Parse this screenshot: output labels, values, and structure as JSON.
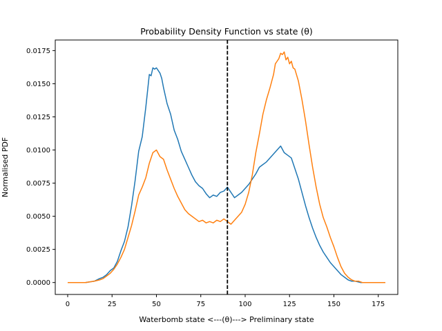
{
  "chart_data": {
    "type": "line",
    "title": "Probability Density Function vs state (θ)",
    "xlabel": "Waterbomb state <---(θ)---> Preliminary state",
    "ylabel": "Normalised PDF",
    "xlim": [
      -7,
      186
    ],
    "ylim": [
      -0.0009,
      0.0183
    ],
    "xticks": [
      0,
      25,
      50,
      75,
      100,
      125,
      150,
      175
    ],
    "yticks": [
      0.0,
      0.0025,
      0.005,
      0.0075,
      0.01,
      0.0125,
      0.015,
      0.0175
    ],
    "ytick_labels": [
      "0.0000",
      "0.0025",
      "0.0050",
      "0.0075",
      "0.0100",
      "0.0125",
      "0.0150",
      "0.0175"
    ],
    "grid": false,
    "vline": {
      "x": 90,
      "style": "dashed",
      "color": "#000000"
    },
    "series": [
      {
        "color": "#1f77b4",
        "x": [
          0,
          10,
          15,
          18,
          20,
          22,
          24,
          26,
          28,
          30,
          32,
          34,
          36,
          38,
          40,
          42,
          44,
          46,
          47,
          48,
          49,
          50,
          51,
          52,
          53,
          54,
          55,
          56,
          58,
          60,
          62,
          64,
          66,
          68,
          70,
          72,
          74,
          76,
          78,
          80,
          82,
          84,
          86,
          88,
          90,
          92,
          94,
          96,
          98,
          100,
          102,
          104,
          106,
          108,
          110,
          112,
          114,
          116,
          118,
          120,
          122,
          124,
          126,
          128,
          130,
          132,
          134,
          136,
          138,
          140,
          142,
          144,
          146,
          148,
          150,
          152,
          154,
          156,
          158,
          160,
          162,
          165,
          170,
          179
        ],
        "y": [
          0.0,
          0.0,
          0.0001,
          0.0003,
          0.0004,
          0.0006,
          0.0009,
          0.0011,
          0.0016,
          0.0024,
          0.0031,
          0.0042,
          0.0058,
          0.0077,
          0.0099,
          0.011,
          0.0132,
          0.0157,
          0.0156,
          0.0162,
          0.0161,
          0.0162,
          0.016,
          0.0158,
          0.0154,
          0.0147,
          0.0141,
          0.0135,
          0.0127,
          0.0115,
          0.0108,
          0.0099,
          0.0093,
          0.0087,
          0.0081,
          0.0076,
          0.0073,
          0.0071,
          0.0067,
          0.0064,
          0.0066,
          0.0065,
          0.0068,
          0.0069,
          0.0072,
          0.0068,
          0.0064,
          0.0066,
          0.0068,
          0.0071,
          0.0074,
          0.0078,
          0.0082,
          0.0087,
          0.0089,
          0.0091,
          0.0094,
          0.0097,
          0.01,
          0.0103,
          0.0098,
          0.0096,
          0.0094,
          0.0086,
          0.0078,
          0.0068,
          0.0058,
          0.0049,
          0.0041,
          0.0034,
          0.0028,
          0.0023,
          0.0019,
          0.0015,
          0.0012,
          0.0009,
          0.0006,
          0.0004,
          0.0002,
          0.0001,
          0.0001,
          0.0,
          0.0,
          0.0
        ]
      },
      {
        "color": "#ff7f0e",
        "x": [
          0,
          10,
          15,
          18,
          20,
          22,
          24,
          26,
          28,
          30,
          32,
          34,
          36,
          38,
          40,
          42,
          44,
          46,
          48,
          50,
          52,
          54,
          56,
          58,
          60,
          62,
          64,
          66,
          68,
          70,
          72,
          74,
          76,
          78,
          80,
          82,
          84,
          86,
          88,
          90,
          92,
          94,
          96,
          98,
          100,
          102,
          104,
          106,
          108,
          110,
          112,
          114,
          116,
          117,
          118,
          119,
          120,
          121,
          122,
          123,
          124,
          125,
          126,
          127,
          128,
          130,
          132,
          134,
          136,
          138,
          140,
          142,
          144,
          146,
          148,
          150,
          152,
          154,
          156,
          158,
          160,
          162,
          164,
          166,
          170,
          179
        ],
        "y": [
          0.0,
          0.0,
          0.0001,
          0.0002,
          0.0003,
          0.0005,
          0.0007,
          0.001,
          0.0014,
          0.0019,
          0.0025,
          0.0034,
          0.0043,
          0.0054,
          0.0066,
          0.0072,
          0.0079,
          0.009,
          0.0098,
          0.01,
          0.0095,
          0.0093,
          0.0085,
          0.0078,
          0.0071,
          0.0065,
          0.006,
          0.0055,
          0.0052,
          0.005,
          0.0048,
          0.0046,
          0.0047,
          0.0045,
          0.0046,
          0.0045,
          0.0047,
          0.0046,
          0.0048,
          0.0046,
          0.0044,
          0.0047,
          0.005,
          0.0053,
          0.0059,
          0.0068,
          0.0081,
          0.0098,
          0.0112,
          0.0127,
          0.0138,
          0.0147,
          0.0157,
          0.0165,
          0.0167,
          0.0169,
          0.0173,
          0.0172,
          0.0174,
          0.0168,
          0.017,
          0.0165,
          0.0167,
          0.0162,
          0.0161,
          0.0152,
          0.0138,
          0.0122,
          0.0104,
          0.0087,
          0.0072,
          0.0059,
          0.0049,
          0.0042,
          0.0034,
          0.0027,
          0.0019,
          0.0012,
          0.0007,
          0.0004,
          0.0002,
          0.0001,
          0.0001,
          0.0,
          0.0,
          0.0
        ]
      }
    ]
  }
}
